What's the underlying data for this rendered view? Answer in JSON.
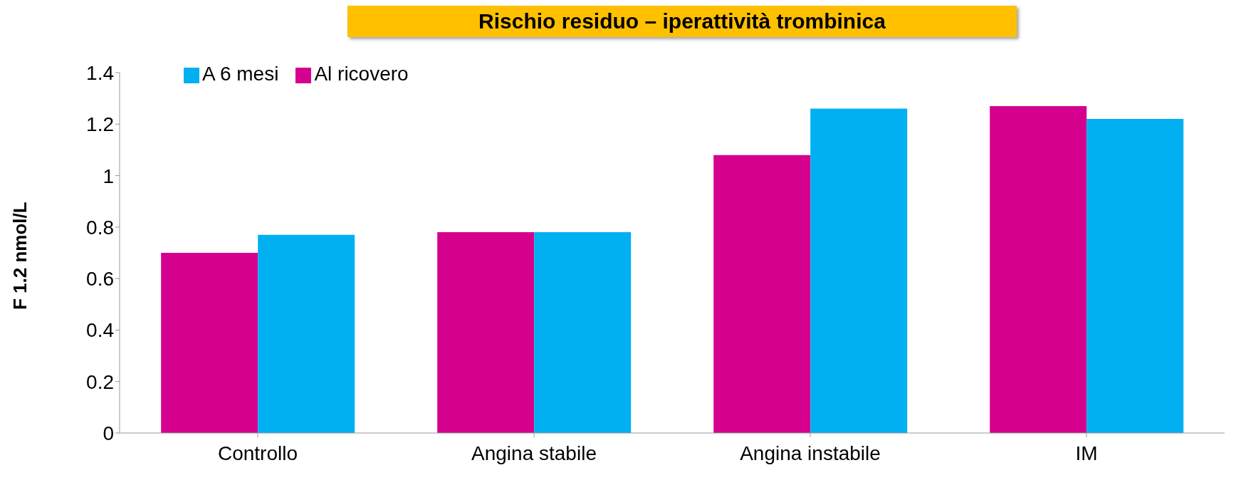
{
  "chart_data": {
    "type": "bar",
    "title": "Rischio residuo – iperattività trombinica",
    "ylabel": "F 1.2 nmol/L",
    "categories": [
      "Controllo",
      "Angina stabile",
      "Angina instabile",
      "IM"
    ],
    "series": [
      {
        "name": "Al ricovero",
        "color": "#d6008f",
        "values": [
          0.7,
          0.78,
          1.08,
          1.27
        ]
      },
      {
        "name": "A 6 mesi",
        "color": "#00b0f0",
        "values": [
          0.77,
          0.78,
          1.26,
          1.22
        ]
      }
    ],
    "ylim": [
      0,
      1.4
    ],
    "yticks": [
      0,
      0.2,
      0.4,
      0.6,
      0.8,
      1,
      1.2,
      1.4
    ],
    "grid": false,
    "legend": "top left"
  }
}
